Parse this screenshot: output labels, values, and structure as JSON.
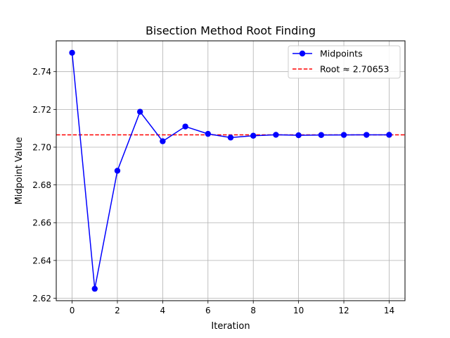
{
  "chart_data": {
    "type": "line",
    "title": "Bisection Method Root Finding",
    "xlabel": "Iteration",
    "ylabel": "Midpoint Value",
    "xlim": [
      -0.7,
      14.7
    ],
    "ylim": [
      2.6187,
      2.7563
    ],
    "x_ticks": [
      0,
      2,
      4,
      6,
      8,
      10,
      12,
      14
    ],
    "y_ticks": [
      2.62,
      2.64,
      2.66,
      2.68,
      2.7,
      2.72,
      2.74
    ],
    "grid": true,
    "legend_position": "top-right",
    "series": [
      {
        "name": "Midpoints",
        "color": "#0000ff",
        "marker": "circle",
        "x": [
          0,
          1,
          2,
          3,
          4,
          5,
          6,
          7,
          8,
          9,
          10,
          11,
          12,
          13,
          14
        ],
        "values": [
          2.75,
          2.625,
          2.6875,
          2.71875,
          2.703125,
          2.7109375,
          2.70703125,
          2.705078125,
          2.7060546875,
          2.70654296875,
          2.706298828125,
          2.7064208984375,
          2.70648193359375,
          2.706512451171875,
          2.7065277099609375
        ]
      }
    ],
    "reference_line": {
      "name": "Root ≈ 2.70653",
      "value": 2.70653,
      "color": "#ff0000",
      "style": "dashed"
    }
  }
}
